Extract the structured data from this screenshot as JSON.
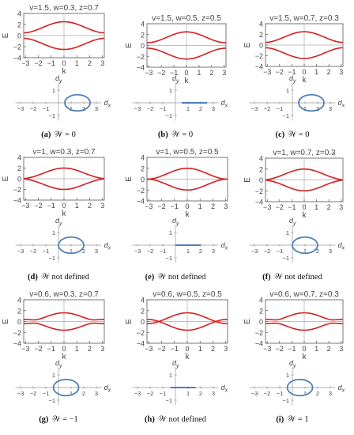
{
  "chart_data": [
    {
      "id": "a",
      "type": "line",
      "title": "v=1.5, w=0.3, z=0.7",
      "v": 1.5,
      "w": 0.3,
      "z": 0.7,
      "xlabel": "k",
      "ylabel": "E",
      "xlim": [
        -3.1416,
        3.1416
      ],
      "ylim": [
        -4,
        4
      ],
      "xticks": [
        "−3",
        "−2",
        "−1",
        "0",
        "1",
        "2",
        "3"
      ],
      "yticks": [
        "4",
        "2",
        "0",
        "−2",
        "−4"
      ],
      "curve_color": "#d42020",
      "param_xlabel": "d",
      "param_xsub": "x",
      "param_ylabel": "d",
      "param_ysub": "y",
      "param_ticks_x": [
        "−3",
        "−2",
        "−1",
        "1",
        "2",
        "3"
      ],
      "param_ticks_y": [
        "1",
        "−1"
      ],
      "loop_color": "#4f7fb8",
      "caption_letter": "(a)",
      "caption_text": "𝒲 = 0"
    },
    {
      "id": "b",
      "type": "line",
      "title": "v=1.5, w=0.5, z=0.5",
      "v": 1.5,
      "w": 0.5,
      "z": 0.5,
      "xlabel": "k",
      "ylabel": "E",
      "xlim": [
        -3.1416,
        3.1416
      ],
      "ylim": [
        -4,
        4
      ],
      "xticks": [
        "−3",
        "−2",
        "−1",
        "0",
        "1",
        "2",
        "3"
      ],
      "yticks": [
        "4",
        "2",
        "0",
        "−2",
        "−4"
      ],
      "curve_color": "#d42020",
      "param_xlabel": "d",
      "param_xsub": "x",
      "param_ylabel": "d",
      "param_ysub": "y",
      "param_ticks_x": [
        "−3",
        "−2",
        "−1",
        "1",
        "2",
        "3"
      ],
      "param_ticks_y": [
        "1",
        "−1"
      ],
      "loop_color": "#4f7fb8",
      "caption_letter": "(b)",
      "caption_text": "𝒲 = 0"
    },
    {
      "id": "c",
      "type": "line",
      "title": "v=1.5, w=0.7, z=0.3",
      "v": 1.5,
      "w": 0.7,
      "z": 0.3,
      "xlabel": "k",
      "ylabel": "E",
      "xlim": [
        -3.1416,
        3.1416
      ],
      "ylim": [
        -4,
        4
      ],
      "xticks": [
        "−3",
        "−2",
        "−1",
        "0",
        "1",
        "2",
        "3"
      ],
      "yticks": [
        "4",
        "2",
        "0",
        "−2",
        "−4"
      ],
      "curve_color": "#d42020",
      "param_xlabel": "d",
      "param_xsub": "x",
      "param_ylabel": "d",
      "param_ysub": "y",
      "param_ticks_x": [
        "−3",
        "−2",
        "−1",
        "1",
        "2",
        "3"
      ],
      "param_ticks_y": [
        "1",
        "−1"
      ],
      "loop_color": "#4f7fb8",
      "caption_letter": "(c)",
      "caption_text": "𝒲 = 0"
    },
    {
      "id": "d",
      "type": "line",
      "title": "v=1, w=0.3, z=0.7",
      "v": 1,
      "w": 0.3,
      "z": 0.7,
      "xlabel": "k",
      "ylabel": "E",
      "xlim": [
        -3.1416,
        3.1416
      ],
      "ylim": [
        -4,
        4
      ],
      "xticks": [
        "−3",
        "−2",
        "−1",
        "0",
        "1",
        "2",
        "3"
      ],
      "yticks": [
        "4",
        "2",
        "0",
        "−2",
        "−4"
      ],
      "curve_color": "#d42020",
      "param_xlabel": "d",
      "param_xsub": "x",
      "param_ylabel": "d",
      "param_ysub": "y",
      "param_ticks_x": [
        "−3",
        "−2",
        "−1",
        "1",
        "2",
        "3"
      ],
      "param_ticks_y": [
        "1",
        "−1"
      ],
      "loop_color": "#4f7fb8",
      "caption_letter": "(d)",
      "caption_text": "𝒲 not defined"
    },
    {
      "id": "e",
      "type": "line",
      "title": "v=1, w=0.5, z=0.5",
      "v": 1,
      "w": 0.5,
      "z": 0.5,
      "xlabel": "k",
      "ylabel": "E",
      "xlim": [
        -3.1416,
        3.1416
      ],
      "ylim": [
        -4,
        4
      ],
      "xticks": [
        "−3",
        "−2",
        "−1",
        "0",
        "1",
        "2",
        "3"
      ],
      "yticks": [
        "4",
        "2",
        "0",
        "−2",
        "−4"
      ],
      "curve_color": "#d42020",
      "param_xlabel": "d",
      "param_xsub": "x",
      "param_ylabel": "d",
      "param_ysub": "y",
      "param_ticks_x": [
        "−3",
        "−2",
        "−1",
        "1",
        "2",
        "3"
      ],
      "param_ticks_y": [
        "1",
        "−1"
      ],
      "loop_color": "#4f7fb8",
      "caption_letter": "(e)",
      "caption_text": "𝒲 not defined"
    },
    {
      "id": "f",
      "type": "line",
      "title": "v=1, w=0.7, z=0.3",
      "v": 1,
      "w": 0.7,
      "z": 0.3,
      "xlabel": "k",
      "ylabel": "E",
      "xlim": [
        -3.1416,
        3.1416
      ],
      "ylim": [
        -4,
        4
      ],
      "xticks": [
        "−3",
        "−2",
        "−1",
        "0",
        "1",
        "2",
        "3"
      ],
      "yticks": [
        "4",
        "2",
        "0",
        "−2",
        "−4"
      ],
      "curve_color": "#d42020",
      "param_xlabel": "d",
      "param_xsub": "x",
      "param_ylabel": "d",
      "param_ysub": "y",
      "param_ticks_x": [
        "−3",
        "−2",
        "−1",
        "1",
        "2",
        "3"
      ],
      "param_ticks_y": [
        "1",
        "−1"
      ],
      "loop_color": "#4f7fb8",
      "caption_letter": "(f)",
      "caption_text": "𝒲 not defined"
    },
    {
      "id": "g",
      "type": "line",
      "title": "v=0.6, w=0.3, z=0.7",
      "v": 0.6,
      "w": 0.3,
      "z": 0.7,
      "xlabel": "k",
      "ylabel": "E",
      "xlim": [
        -3.1416,
        3.1416
      ],
      "ylim": [
        -4,
        4
      ],
      "xticks": [
        "−3",
        "−2",
        "−1",
        "0",
        "1",
        "2",
        "3"
      ],
      "yticks": [
        "4",
        "2",
        "0",
        "−2",
        "−4"
      ],
      "curve_color": "#d42020",
      "param_xlabel": "d",
      "param_xsub": "x",
      "param_ylabel": "d",
      "param_ysub": "y",
      "param_ticks_x": [
        "−3",
        "−2",
        "−1",
        "1",
        "2",
        "3"
      ],
      "param_ticks_y": [
        "1",
        "−1"
      ],
      "loop_color": "#4f7fb8",
      "caption_letter": "(g)",
      "caption_text": "𝒲 = −1"
    },
    {
      "id": "h",
      "type": "line",
      "title": "v=0.6, w=0.5, z=0.5",
      "v": 0.6,
      "w": 0.5,
      "z": 0.5,
      "xlabel": "k",
      "ylabel": "E",
      "xlim": [
        -3.1416,
        3.1416
      ],
      "ylim": [
        -4,
        4
      ],
      "xticks": [
        "−3",
        "−2",
        "−1",
        "0",
        "1",
        "2",
        "3"
      ],
      "yticks": [
        "4",
        "2",
        "0",
        "−2",
        "−4"
      ],
      "curve_color": "#d42020",
      "param_xlabel": "d",
      "param_xsub": "x",
      "param_ylabel": "d",
      "param_ysub": "y",
      "param_ticks_x": [
        "−3",
        "−2",
        "−1",
        "1",
        "2",
        "3"
      ],
      "param_ticks_y": [
        "1",
        "−1"
      ],
      "loop_color": "#4f7fb8",
      "caption_letter": "(h)",
      "caption_text": "𝒲 not defined"
    },
    {
      "id": "i",
      "type": "line",
      "title": "v=0.6, w=0.7, z=0.3",
      "v": 0.6,
      "w": 0.7,
      "z": 0.3,
      "xlabel": "k",
      "ylabel": "E",
      "xlim": [
        -3.1416,
        3.1416
      ],
      "ylim": [
        -4,
        4
      ],
      "xticks": [
        "−3",
        "−2",
        "−1",
        "0",
        "1",
        "2",
        "3"
      ],
      "yticks": [
        "4",
        "2",
        "0",
        "−2",
        "−4"
      ],
      "curve_color": "#d42020",
      "param_xlabel": "d",
      "param_xsub": "x",
      "param_ylabel": "d",
      "param_ysub": "y",
      "param_ticks_x": [
        "−3",
        "−2",
        "−1",
        "1",
        "2",
        "3"
      ],
      "param_ticks_y": [
        "1",
        "−1"
      ],
      "loop_color": "#4f7fb8",
      "caption_letter": "(i)",
      "caption_text": "𝒲 = 1"
    }
  ]
}
